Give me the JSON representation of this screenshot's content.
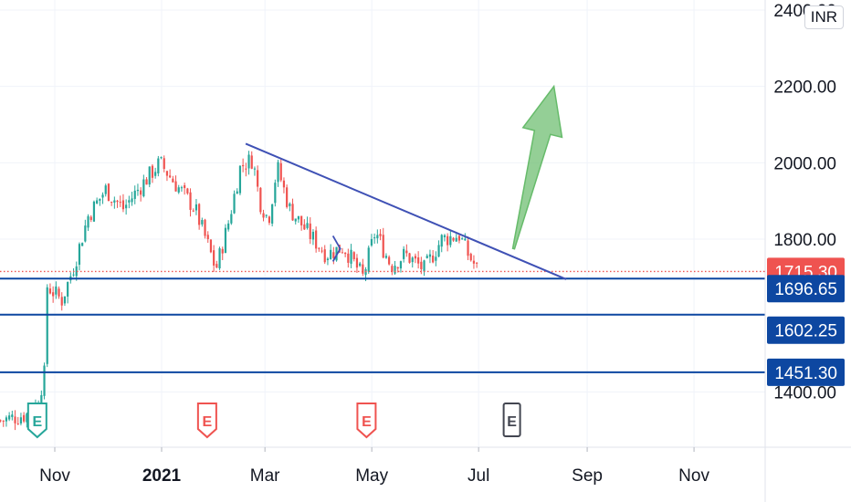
{
  "currency_label": "INR",
  "colors": {
    "up": "#26a69a",
    "down": "#ef5350",
    "trendline": "#3f51b5",
    "level": "#0d47a1",
    "level_tag": "#0d47a1",
    "price_tag": "#ef5350",
    "arrow": "#66bb6a",
    "earnings_past": "#ef5350",
    "earnings_first": "#26a69a",
    "earnings_future": "#434651"
  },
  "chart_data": {
    "type": "candlestick",
    "title": "",
    "x_ticks": [
      "Nov",
      "2021",
      "Mar",
      "May",
      "Jul",
      "Sep",
      "Nov"
    ],
    "y_ticks": [
      "2400.00",
      "2200.00",
      "2000.00",
      "1800.00",
      "1400.00"
    ],
    "y_range": [
      1265,
      2440
    ],
    "current_price": "1715.30",
    "horizontal_levels": [
      {
        "label": "1696.65",
        "value": 1696.65
      },
      {
        "label": "1602.25",
        "value": 1602.25
      },
      {
        "label": "1451.30",
        "value": 1451.3
      }
    ],
    "trendline": {
      "start": {
        "date": "2021-02-18",
        "value": 2050
      },
      "end": {
        "date": "2021-08-20",
        "value": 1695
      }
    },
    "projection_arrow": {
      "start": {
        "date": "2021-07-21",
        "value": 1775
      },
      "end": {
        "date": "2021-08-13",
        "value": 2200
      }
    },
    "earnings_markers": [
      {
        "date": "2020-10-22",
        "label": "E",
        "state": "reported"
      },
      {
        "date": "2021-01-27",
        "label": "E",
        "state": "reported"
      },
      {
        "date": "2021-04-28",
        "label": "E",
        "state": "reported"
      },
      {
        "date": "2021-07-20",
        "label": "E",
        "state": "upcoming"
      }
    ],
    "price_path": [
      {
        "date": "2020-10-01",
        "close": 1325
      },
      {
        "date": "2020-10-20",
        "close": 1345
      },
      {
        "date": "2020-10-26",
        "close": 1440
      },
      {
        "date": "2020-10-27",
        "close": 1680
      },
      {
        "date": "2020-11-05",
        "close": 1640
      },
      {
        "date": "2020-11-12",
        "close": 1730
      },
      {
        "date": "2020-11-20",
        "close": 1860
      },
      {
        "date": "2020-11-30",
        "close": 1930
      },
      {
        "date": "2020-12-10",
        "close": 1880
      },
      {
        "date": "2020-12-22",
        "close": 1950
      },
      {
        "date": "2020-12-31",
        "close": 2000
      },
      {
        "date": "2021-01-08",
        "close": 1950
      },
      {
        "date": "2021-01-20",
        "close": 1880
      },
      {
        "date": "2021-01-27",
        "close": 1790
      },
      {
        "date": "2021-02-01",
        "close": 1720
      },
      {
        "date": "2021-02-08",
        "close": 1840
      },
      {
        "date": "2021-02-15",
        "close": 1990
      },
      {
        "date": "2021-02-22",
        "close": 2010
      },
      {
        "date": "2021-02-26",
        "close": 1900
      },
      {
        "date": "2021-03-03",
        "close": 1850
      },
      {
        "date": "2021-03-08",
        "close": 1990
      },
      {
        "date": "2021-03-15",
        "close": 1880
      },
      {
        "date": "2021-03-25",
        "close": 1820
      },
      {
        "date": "2021-04-05",
        "close": 1760
      },
      {
        "date": "2021-04-15",
        "close": 1780
      },
      {
        "date": "2021-04-26",
        "close": 1700
      },
      {
        "date": "2021-05-03",
        "close": 1820
      },
      {
        "date": "2021-05-12",
        "close": 1730
      },
      {
        "date": "2021-05-20",
        "close": 1760
      },
      {
        "date": "2021-05-31",
        "close": 1720
      },
      {
        "date": "2021-06-10",
        "close": 1800
      },
      {
        "date": "2021-06-20",
        "close": 1810
      },
      {
        "date": "2021-06-25",
        "close": 1760
      },
      {
        "date": "2021-07-01",
        "close": 1715
      }
    ]
  }
}
